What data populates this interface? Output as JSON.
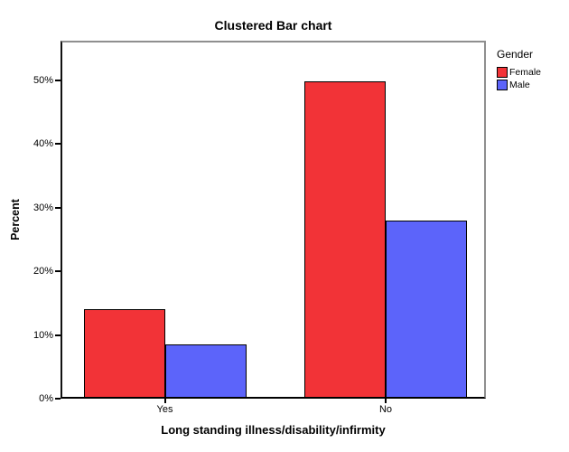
{
  "chart_data": {
    "type": "bar",
    "title": "Clustered Bar chart",
    "xlabel": "Long standing illness/disability/infirmity",
    "ylabel": "Percent",
    "legend_title": "Gender",
    "legend_position": "top-right-outside",
    "categories": [
      "Yes",
      "No"
    ],
    "series": [
      {
        "name": "Female",
        "color": "#F23337",
        "values": [
          14.1,
          49.8
        ]
      },
      {
        "name": "Male",
        "color": "#5C64FA",
        "values": [
          8.5,
          28.0
        ]
      }
    ],
    "y_tick_labels": [
      "0%",
      "10%",
      "20%",
      "30%",
      "40%",
      "50%"
    ],
    "y_tick_values": [
      0,
      10,
      20,
      30,
      40,
      50
    ],
    "ylim": [
      0,
      56.25
    ],
    "grid": false,
    "bar_border_color": "#000000"
  }
}
